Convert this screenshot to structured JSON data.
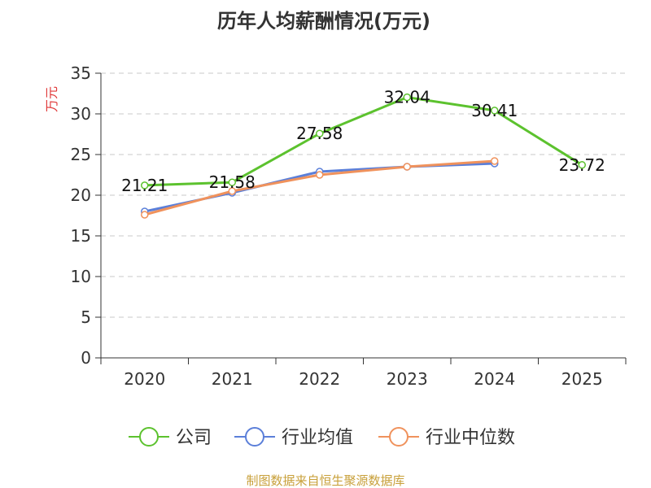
{
  "chart_data": {
    "type": "line",
    "title": "历年人均薪酬情况(万元)",
    "ylabel": "万元",
    "xlabel": "",
    "categories": [
      "2020",
      "2021",
      "2022",
      "2023",
      "2024",
      "2025"
    ],
    "ylim": [
      0,
      35
    ],
    "yticks": [
      0,
      5,
      10,
      15,
      20,
      25,
      30,
      35
    ],
    "grid": true,
    "legend_position": "bottom",
    "series": [
      {
        "name": "公司",
        "color": "#5cc22e",
        "values": [
          21.21,
          21.58,
          27.58,
          32.04,
          30.41,
          23.72
        ],
        "labels": [
          "21.21",
          "21.58",
          "27.58",
          "32.04",
          "30.41",
          "23.72"
        ]
      },
      {
        "name": "行业均值",
        "color": "#5b7fd9",
        "values": [
          18.0,
          20.3,
          22.9,
          23.5,
          23.9,
          null
        ]
      },
      {
        "name": "行业中位数",
        "color": "#f0925c",
        "values": [
          17.6,
          20.5,
          22.5,
          23.5,
          24.2,
          null
        ]
      }
    ]
  },
  "source": "制图数据来自恒生聚源数据库"
}
